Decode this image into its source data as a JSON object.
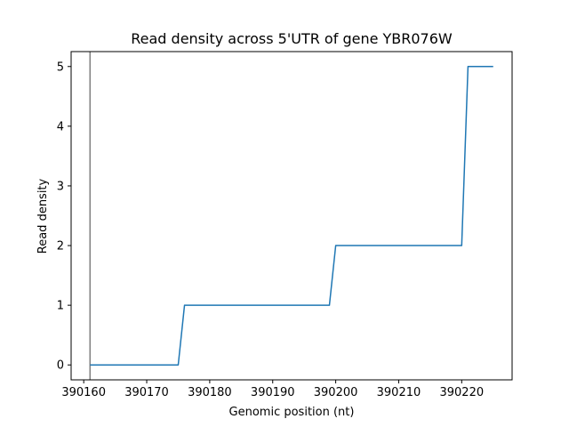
{
  "chart_data": {
    "type": "line",
    "title": "Read density across 5'UTR of gene YBR076W",
    "xlabel": "Genomic position (nt)",
    "ylabel": "Read density",
    "xlim": [
      390158,
      390228
    ],
    "ylim": [
      -0.25,
      5.25
    ],
    "xticks": [
      390160,
      390170,
      390180,
      390190,
      390200,
      390210,
      390220
    ],
    "yticks": [
      0,
      1,
      2,
      3,
      4,
      5
    ],
    "grid": false,
    "marker": {
      "x": 390161,
      "color": "#808080"
    },
    "series": [
      {
        "color": "#1f77b4",
        "x": [
          390161,
          390175,
          390176,
          390199,
          390200,
          390220,
          390221,
          390225
        ],
        "y": [
          0,
          0,
          1,
          1,
          2,
          2,
          5,
          5
        ]
      }
    ]
  }
}
